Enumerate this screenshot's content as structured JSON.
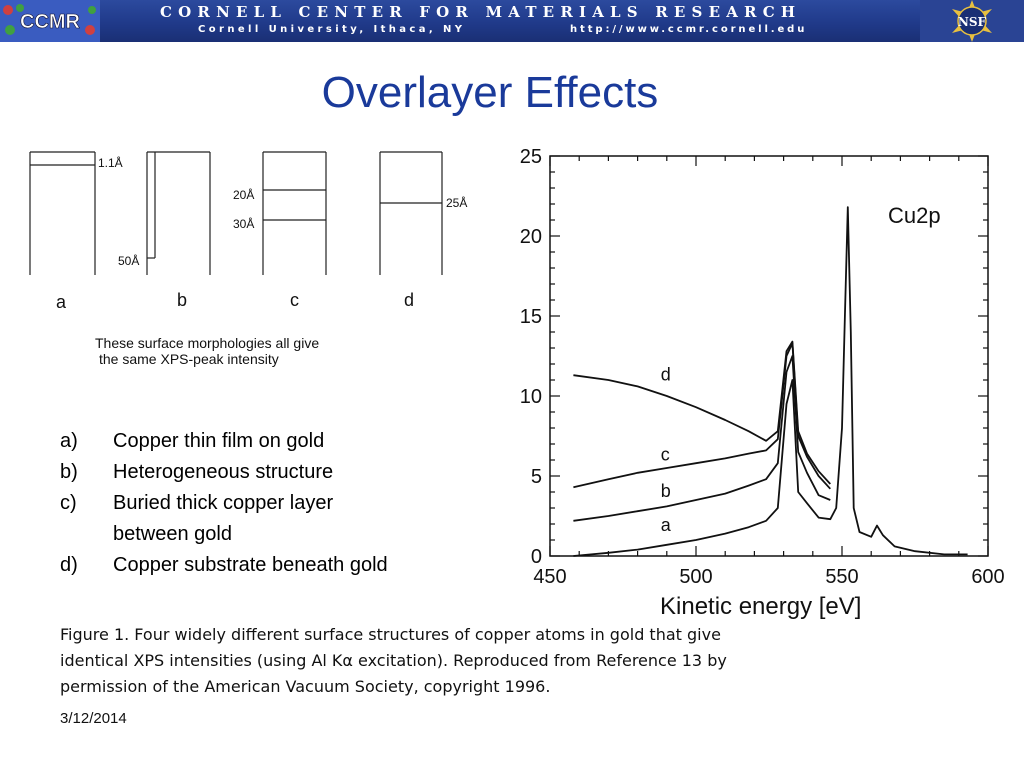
{
  "header": {
    "logo_left": "CCMR",
    "title": "CORNELL CENTER FOR MATERIALS RESEARCH",
    "university": "Cornell University, Ithaca, NY",
    "url": "http://www.ccmr.cornell.edu",
    "logo_right": "NSF"
  },
  "slide": {
    "title": "Overlayer Effects",
    "date": "3/12/2014"
  },
  "morphology": {
    "panels": [
      {
        "label": "a",
        "annotations": [
          "1.1Å"
        ]
      },
      {
        "label": "b",
        "annotations": [
          "50Å"
        ]
      },
      {
        "label": "c",
        "annotations": [
          "20Å",
          "30Å"
        ]
      },
      {
        "label": "d",
        "annotations": [
          "25Å"
        ]
      }
    ],
    "caption_line1": "These surface morphologies all give",
    "caption_line2": "the same XPS-peak intensity"
  },
  "legend": [
    {
      "label": "a)",
      "text": "Copper thin film on gold"
    },
    {
      "label": "b)",
      "text": "Heterogeneous structure"
    },
    {
      "label": "c)",
      "text": "Buried thick copper layer between gold"
    },
    {
      "label": "d)",
      "text": "Copper substrate beneath gold"
    }
  ],
  "chart_data": {
    "type": "line",
    "title": "Cu2p",
    "xlabel": "Kinetic energy [eV]",
    "ylabel": "",
    "xlim": [
      450,
      600
    ],
    "ylim": [
      0,
      25
    ],
    "xticks": [
      450,
      500,
      550,
      600
    ],
    "yticks": [
      0,
      5,
      10,
      15,
      20,
      25
    ],
    "grid": false,
    "series": [
      {
        "name": "a",
        "x": [
          458,
          470,
          480,
          490,
          500,
          510,
          518,
          524,
          528,
          531,
          533,
          535,
          538,
          542,
          546,
          548,
          550,
          551,
          552,
          553,
          554,
          556,
          560,
          562,
          564,
          568,
          575,
          585,
          593
        ],
        "y": [
          0.0,
          0.2,
          0.4,
          0.7,
          1.0,
          1.4,
          1.8,
          2.2,
          3.0,
          9.5,
          11.0,
          4.0,
          3.3,
          2.4,
          2.3,
          3.0,
          8.0,
          15.0,
          21.8,
          14.0,
          3.0,
          1.5,
          1.2,
          1.9,
          1.3,
          0.6,
          0.3,
          0.1,
          0.1
        ]
      },
      {
        "name": "b",
        "x": [
          458,
          470,
          480,
          490,
          500,
          510,
          518,
          524,
          528,
          531,
          533,
          535,
          538,
          542,
          546
        ],
        "y": [
          2.2,
          2.5,
          2.8,
          3.1,
          3.5,
          3.9,
          4.4,
          4.8,
          5.8,
          11.5,
          12.5,
          6.5,
          5.2,
          3.8,
          3.5
        ]
      },
      {
        "name": "c",
        "x": [
          458,
          470,
          480,
          490,
          500,
          510,
          518,
          524,
          528,
          531,
          533,
          535,
          538,
          542,
          546
        ],
        "y": [
          4.3,
          4.8,
          5.2,
          5.5,
          5.8,
          6.1,
          6.4,
          6.6,
          7.3,
          12.5,
          13.3,
          7.5,
          6.2,
          5.0,
          4.2
        ]
      },
      {
        "name": "d",
        "x": [
          458,
          470,
          480,
          490,
          500,
          510,
          518,
          524,
          528,
          531,
          533,
          535,
          538,
          542,
          546
        ],
        "y": [
          11.3,
          11.0,
          10.6,
          10.0,
          9.3,
          8.5,
          7.8,
          7.2,
          7.8,
          12.8,
          13.4,
          7.8,
          6.4,
          5.3,
          4.5
        ]
      }
    ]
  },
  "figure_caption": {
    "line1": "Figure 1. Four widely different surface structures of copper atoms in gold that give",
    "line2": "identical XPS intensities (using Al Kα excitation). Reproduced from Reference 13 by",
    "line3": "permission of the American Vacuum Society, copyright 1996."
  }
}
